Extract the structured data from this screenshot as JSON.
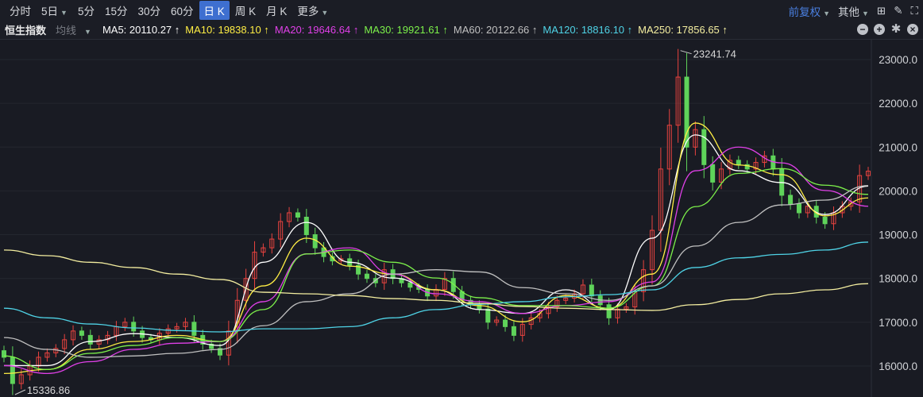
{
  "toolbar": {
    "tabs": [
      "分时",
      "5日",
      "5分",
      "15分",
      "30分",
      "60分",
      "日 K",
      "周 K",
      "月 K",
      "更多"
    ],
    "active": "日 K",
    "adjust": "前复权",
    "other": "其他"
  },
  "ma_bar": {
    "index_name": "恒生指数",
    "selector": "均线",
    "items": [
      {
        "label": "MA5: 20110.27 ↑",
        "color": "#ffffff"
      },
      {
        "label": "MA10: 19838.10 ↑",
        "color": "#ffee44"
      },
      {
        "label": "MA20: 19646.64 ↑",
        "color": "#e040e8"
      },
      {
        "label": "MA30: 19921.61 ↑",
        "color": "#7cf04a"
      },
      {
        "label": "MA60: 20122.66 ↑",
        "color": "#c0c0c0"
      },
      {
        "label": "MA120: 18816.10 ↑",
        "color": "#4fd3e6"
      },
      {
        "label": "MA250: 17856.65 ↑",
        "color": "#f4eea0"
      }
    ]
  },
  "chart_data": {
    "type": "candlestick",
    "ylim": [
      15000,
      23400
    ],
    "yticks": [
      "16000.0",
      "17000.0",
      "18000.0",
      "19000.0",
      "20000.0",
      "21000.0",
      "22000.0",
      "23000.0"
    ],
    "ytick_values": [
      16000,
      17000,
      18000,
      19000,
      20000,
      21000,
      22000,
      23000
    ],
    "grid": true,
    "up_color": "#e8433f",
    "down_color": "#5fd35a",
    "annotations": [
      {
        "label": "23241.74",
        "value": 23241.74,
        "type": "max"
      },
      {
        "label": "15336.86",
        "value": 15336.86,
        "type": "min"
      }
    ],
    "closes": [
      16200,
      15600,
      15800,
      16000,
      16200,
      16300,
      16400,
      16600,
      16800,
      16700,
      16500,
      16600,
      16700,
      16900,
      17000,
      16800,
      16650,
      16600,
      16750,
      16850,
      16900,
      17000,
      16700,
      16500,
      16400,
      16250,
      16800,
      17500,
      18000,
      18600,
      18700,
      18900,
      19300,
      19500,
      19400,
      19000,
      18700,
      18500,
      18400,
      18450,
      18300,
      18100,
      18000,
      17900,
      18200,
      18000,
      17900,
      17800,
      17750,
      17600,
      17750,
      18000,
      17700,
      17500,
      17400,
      17300,
      17000,
      17050,
      16900,
      16700,
      16950,
      17100,
      17200,
      17350,
      17500,
      17550,
      17650,
      17850,
      17600,
      17400,
      17100,
      17300,
      17350,
      17700,
      18200,
      19100,
      20500,
      21500,
      22600,
      21000,
      21400,
      20600,
      20200,
      20500,
      20700,
      20600,
      20500,
      20650,
      20800,
      20500,
      19900,
      19700,
      19500,
      19650,
      19400,
      19250,
      19500,
      19650,
      19750,
      20350,
      20450
    ],
    "ma_series": [
      {
        "name": "MA5",
        "color": "#ffffff",
        "values": [
          16010,
          16010,
          16560,
          16740,
          16650,
          16470,
          18370,
          19280,
          18370,
          18010,
          17740,
          17290,
          17200,
          17740,
          17290,
          18920,
          21280,
          20460,
          20190,
          19460,
          20110
        ]
      },
      {
        "name": "MA10",
        "color": "#ffee44",
        "values": [
          15830,
          15920,
          16380,
          16560,
          16700,
          16560,
          17830,
          18920,
          18280,
          18100,
          17740,
          17380,
          17010,
          17610,
          17320,
          18100,
          21550,
          20590,
          20370,
          19430,
          19840
        ]
      },
      {
        "name": "MA20",
        "color": "#e040e8",
        "values": [
          16010,
          15830,
          16100,
          16380,
          16520,
          16560,
          17470,
          18560,
          18700,
          18100,
          17650,
          17470,
          17200,
          17380,
          17470,
          17920,
          20460,
          21000,
          20640,
          20010,
          19650
        ]
      },
      {
        "name": "MA30",
        "color": "#7cf04a",
        "values": [
          16230,
          15920,
          16290,
          16470,
          16650,
          16560,
          17290,
          18560,
          18650,
          18370,
          18010,
          17560,
          17380,
          17380,
          17320,
          17830,
          19640,
          20400,
          20510,
          20130,
          19920
        ]
      },
      {
        "name": "MA60",
        "color": "#c0c0c0",
        "values": [
          16650,
          16380,
          16200,
          16230,
          16290,
          16380,
          16920,
          17470,
          17650,
          18100,
          18200,
          18150,
          17790,
          17650,
          17500,
          17830,
          18740,
          19280,
          19680,
          19790,
          20120
        ]
      },
      {
        "name": "MA120",
        "color": "#4fd3e6",
        "values": [
          17320,
          17100,
          16960,
          16870,
          16810,
          16780,
          16850,
          16850,
          16900,
          17100,
          17290,
          17410,
          17470,
          17580,
          17630,
          17740,
          18250,
          18470,
          18550,
          18650,
          18830
        ]
      },
      {
        "name": "MA250",
        "color": "#f4eea0",
        "values": [
          18650,
          18520,
          18370,
          18250,
          18100,
          17975,
          17685,
          17650,
          17610,
          17540,
          17500,
          17430,
          17360,
          17320,
          17290,
          17270,
          17400,
          17520,
          17650,
          17740,
          17880
        ]
      }
    ]
  }
}
